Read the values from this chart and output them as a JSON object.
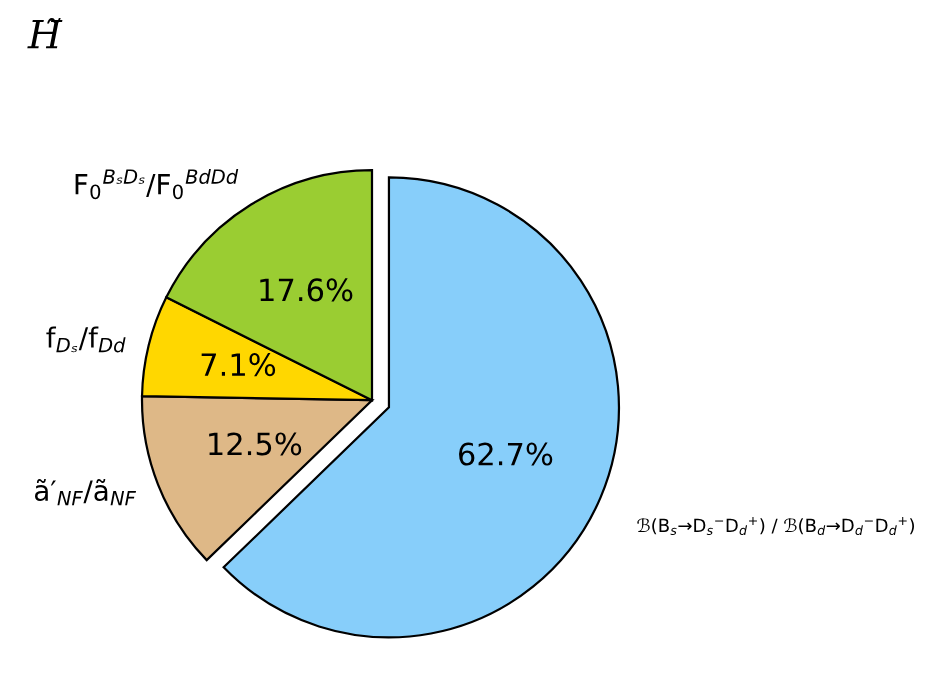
{
  "chart_data": {
    "type": "pie",
    "title": "H̃",
    "categories": [
      "ℬ(B$_{s}$→D$_{s}$$^{−}$D$_{d}$$^{+}$) / ℬ(B$_{d}$→D$_{d}$$^{−}$D$_{d}$$^{+}$)",
      "ã′$_{NF}$/ã$_{NF}$",
      "f$_{Dₛ}$/f$_{Dd}$",
      "F$_{0}$$^{BₛDₛ}$/F$_{0}$$^{BdDd}$"
    ],
    "values": [
      62.7,
      12.5,
      7.1,
      17.6
    ],
    "value_labels": [
      "62.7%",
      "12.5%",
      "7.1%",
      "17.6%"
    ],
    "colors": [
      "#87cefa",
      "#deb887",
      "#ffd700",
      "#9acd32"
    ]
  }
}
